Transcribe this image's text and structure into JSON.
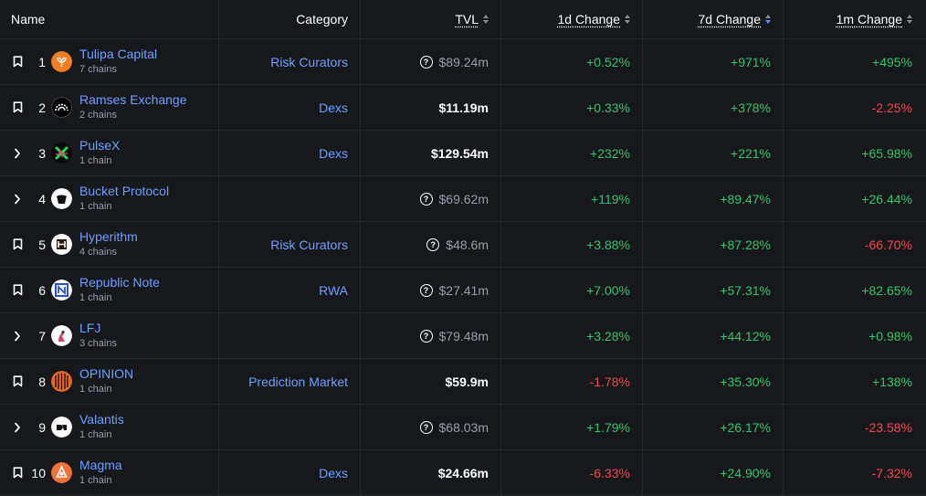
{
  "header": {
    "name": "Name",
    "category": "Category",
    "tvl": "TVL",
    "change_1d": "1d Change",
    "change_7d": "7d Change",
    "change_1m": "1m Change"
  },
  "rows": [
    {
      "rank": "1",
      "lead": "bookmark-icon",
      "logo": "tulipa-logo",
      "logo_color": "#f07f24",
      "name": "Tulipa Capital",
      "chains": "7 chains",
      "category": "Risk Curators",
      "tvl": "$89.24m",
      "tvl_estimated": true,
      "c1d": "+0.52%",
      "c7d": "+971%",
      "c1m": "+495%"
    },
    {
      "rank": "2",
      "lead": "bookmark-icon",
      "logo": "ramses-logo",
      "logo_color": "#000000",
      "name": "Ramses Exchange",
      "chains": "2 chains",
      "category": "Dexs",
      "tvl": "$11.19m",
      "tvl_estimated": false,
      "c1d": "+0.33%",
      "c7d": "+378%",
      "c1m": "-2.25%"
    },
    {
      "rank": "3",
      "lead": "chevron-right-icon",
      "logo": "pulsex-logo",
      "logo_color": "#0a0a0a",
      "name": "PulseX",
      "chains": "1 chain",
      "category": "Dexs",
      "tvl": "$129.54m",
      "tvl_estimated": false,
      "c1d": "+232%",
      "c7d": "+221%",
      "c1m": "+65.98%"
    },
    {
      "rank": "4",
      "lead": "chevron-right-icon",
      "logo": "bucket-logo",
      "logo_color": "#ffffff",
      "name": "Bucket Protocol",
      "chains": "1 chain",
      "category": "",
      "tvl": "$69.62m",
      "tvl_estimated": true,
      "c1d": "+119%",
      "c7d": "+89.47%",
      "c1m": "+26.44%"
    },
    {
      "rank": "5",
      "lead": "bookmark-icon",
      "logo": "hyperithm-logo",
      "logo_color": "#ffffff",
      "name": "Hyperithm",
      "chains": "4 chains",
      "category": "Risk Curators",
      "tvl": "$48.6m",
      "tvl_estimated": true,
      "c1d": "+3.88%",
      "c7d": "+87.28%",
      "c1m": "-66.70%"
    },
    {
      "rank": "6",
      "lead": "bookmark-icon",
      "logo": "republic-logo",
      "logo_color": "#ffffff",
      "name": "Republic Note",
      "chains": "1 chain",
      "category": "RWA",
      "tvl": "$27.41m",
      "tvl_estimated": true,
      "c1d": "+7.00%",
      "c7d": "+57.31%",
      "c1m": "+82.65%"
    },
    {
      "rank": "7",
      "lead": "chevron-right-icon",
      "logo": "lfj-logo",
      "logo_color": "#ffffff",
      "name": "LFJ",
      "chains": "3 chains",
      "category": "",
      "tvl": "$79.48m",
      "tvl_estimated": true,
      "c1d": "+3.28%",
      "c7d": "+44.12%",
      "c1m": "+0.98%"
    },
    {
      "rank": "8",
      "lead": "bookmark-icon",
      "logo": "opinion-logo",
      "logo_color": "#e8692a",
      "name": "OPINION",
      "chains": "1 chain",
      "category": "Prediction Market",
      "tvl": "$59.9m",
      "tvl_estimated": false,
      "c1d": "-1.78%",
      "c7d": "+35.30%",
      "c1m": "+138%"
    },
    {
      "rank": "9",
      "lead": "chevron-right-icon",
      "logo": "valantis-logo",
      "logo_color": "#ffffff",
      "name": "Valantis",
      "chains": "1 chain",
      "category": "",
      "tvl": "$68.03m",
      "tvl_estimated": true,
      "c1d": "+1.79%",
      "c7d": "+26.17%",
      "c1m": "-23.58%"
    },
    {
      "rank": "10",
      "lead": "bookmark-icon",
      "logo": "magma-logo",
      "logo_color": "#f07238",
      "name": "Magma",
      "chains": "1 chain",
      "category": "Dexs",
      "tvl": "$24.66m",
      "tvl_estimated": false,
      "c1d": "-6.33%",
      "c7d": "+24.90%",
      "c1m": "-7.32%"
    }
  ]
}
